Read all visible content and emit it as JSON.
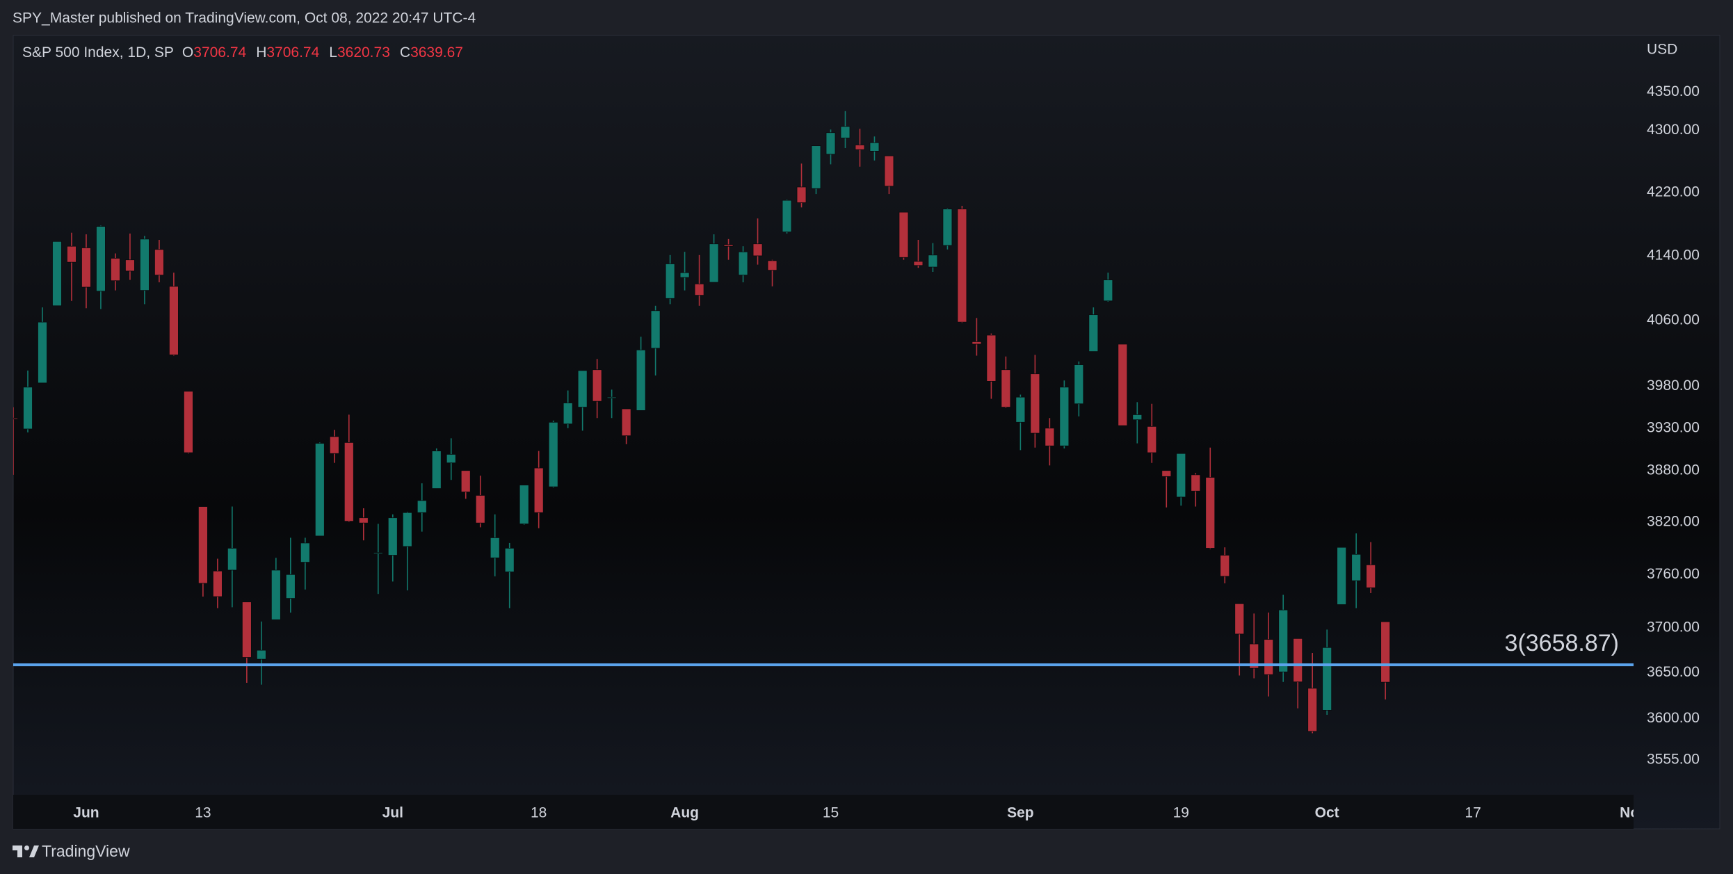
{
  "publisher_line": "SPY_Master published on TradingView.com, Oct 08, 2022 20:47 UTC-4",
  "brand": "TradingView",
  "chart_data": {
    "type": "candlestick",
    "symbol": "S&P 500 Index, 1D, SP",
    "legend_labels": [
      "O",
      "H",
      "L",
      "C"
    ],
    "currency": "USD",
    "x": [
      "2022-05-24",
      "2022-05-25",
      "2022-05-26",
      "2022-05-27",
      "2022-05-31",
      "2022-06-01",
      "2022-06-02",
      "2022-06-03",
      "2022-06-06",
      "2022-06-07",
      "2022-06-08",
      "2022-06-09",
      "2022-06-10",
      "2022-06-13",
      "2022-06-14",
      "2022-06-15",
      "2022-06-16",
      "2022-06-17",
      "2022-06-21",
      "2022-06-22",
      "2022-06-23",
      "2022-06-24",
      "2022-06-27",
      "2022-06-28",
      "2022-06-29",
      "2022-06-30",
      "2022-07-01",
      "2022-07-05",
      "2022-07-06",
      "2022-07-07",
      "2022-07-08",
      "2022-07-11",
      "2022-07-12",
      "2022-07-13",
      "2022-07-14",
      "2022-07-15",
      "2022-07-18",
      "2022-07-19",
      "2022-07-20",
      "2022-07-21",
      "2022-07-22",
      "2022-07-25",
      "2022-07-26",
      "2022-07-27",
      "2022-07-28",
      "2022-07-29",
      "2022-08-01",
      "2022-08-02",
      "2022-08-03",
      "2022-08-04",
      "2022-08-05",
      "2022-08-08",
      "2022-08-09",
      "2022-08-10",
      "2022-08-11",
      "2022-08-12",
      "2022-08-15",
      "2022-08-16",
      "2022-08-17",
      "2022-08-18",
      "2022-08-19",
      "2022-08-22",
      "2022-08-23",
      "2022-08-24",
      "2022-08-25",
      "2022-08-26",
      "2022-08-29",
      "2022-08-30",
      "2022-08-31",
      "2022-09-01",
      "2022-09-02",
      "2022-09-06",
      "2022-09-07",
      "2022-09-08",
      "2022-09-09",
      "2022-09-12",
      "2022-09-13",
      "2022-09-14",
      "2022-09-15",
      "2022-09-16",
      "2022-09-19",
      "2022-09-20",
      "2022-09-21",
      "2022-09-22",
      "2022-09-23",
      "2022-09-26",
      "2022-09-27",
      "2022-09-28",
      "2022-09-29",
      "2022-09-30",
      "2022-10-03",
      "2022-10-04",
      "2022-10-05",
      "2022-10-06",
      "2022-10-07"
    ],
    "open": [
      3942,
      3929,
      3984,
      4078,
      4152,
      4150,
      4096,
      4137,
      4135,
      4097,
      4148,
      4102,
      3974,
      3838,
      3764,
      3765,
      3729,
      3665,
      3709,
      3733,
      3774,
      3804,
      3920,
      3913,
      3825,
      3785,
      3782,
      3792,
      3831,
      3859,
      3889,
      3880,
      3851,
      3779,
      3763,
      3818,
      3883,
      3861,
      3935,
      3955,
      4000,
      3966,
      3953,
      3951,
      4026,
      4087,
      4113,
      4105,
      4107,
      4154,
      4116,
      4155,
      4134,
      4170,
      4227,
      4225,
      4269,
      4290,
      4281,
      4273,
      4267,
      4195,
      4133,
      4126,
      4153,
      4199,
      4034,
      4042,
      4000,
      3937,
      3995,
      3930,
      3909,
      3959,
      4022,
      4084,
      4031,
      3940,
      3932,
      3880,
      3849,
      3875,
      3872,
      3782,
      3727,
      3682,
      3687,
      3651,
      3688,
      3633,
      3609,
      3726,
      3753,
      3771,
      3706.74
    ],
    "high": [
      3955,
      3999,
      4076,
      4158,
      4169,
      4167,
      4178,
      4143,
      4168,
      4165,
      4160,
      4119,
      3974,
      3838,
      3778,
      3838,
      3729,
      3707,
      3779,
      3802,
      3802,
      3913,
      3928,
      3946,
      3836,
      3818,
      3829,
      3832,
      3865,
      3906,
      3918,
      3880,
      3874,
      3829,
      3796,
      3863,
      3903,
      3939,
      3975,
      3999,
      4013,
      3976,
      3953,
      4040,
      4078,
      4141,
      4145,
      4141,
      4167,
      4161,
      4152,
      4187,
      4135,
      4211,
      4257,
      4280,
      4301,
      4325,
      4302,
      4292,
      4267,
      4195,
      4160,
      4156,
      4200,
      4203,
      4063,
      4044,
      4016,
      3970,
      4018,
      3942,
      3987,
      4010,
      4076,
      4119,
      4031,
      3961,
      3959,
      3880,
      3900,
      3877,
      3907,
      3791,
      3727,
      3716,
      3717,
      3737,
      3688,
      3672,
      3698,
      3791,
      3807,
      3797,
      3706.74
    ],
    "low": [
      3875,
      3925,
      3984,
      4078,
      4084,
      4075,
      4074,
      4097,
      4110,
      4080,
      4107,
      4017,
      3900,
      3735,
      3722,
      3723,
      3639,
      3637,
      3709,
      3717,
      3743,
      3804,
      3889,
      3820,
      3799,
      3738,
      3752,
      3742,
      3809,
      3859,
      3869,
      3847,
      3814,
      3758,
      3722,
      3817,
      3813,
      3860,
      3930,
      3927,
      3942,
      3942,
      3911,
      3951,
      3993,
      4080,
      4097,
      4078,
      4107,
      4135,
      4107,
      4129,
      4102,
      4168,
      4201,
      4218,
      4256,
      4277,
      4253,
      4261,
      4218,
      4135,
      4125,
      4120,
      4148,
      4057,
      4017,
      3965,
      3954,
      3904,
      3907,
      3886,
      3906,
      3944,
      4022,
      4083,
      3933,
      3912,
      3889,
      3837,
      3839,
      3838,
      3789,
      3750,
      3647,
      3644,
      3624,
      3640,
      3611,
      3584,
      3604,
      3726,
      3722,
      3739,
      3620.73
    ],
    "close": [
      3941,
      3979,
      4058,
      4158,
      4132,
      4101,
      4177,
      4109,
      4121,
      4161,
      4116,
      4018,
      3901,
      3750,
      3735,
      3790,
      3667,
      3675,
      3765,
      3760,
      3796,
      3912,
      3900,
      3821,
      3819,
      3785,
      3825,
      3831,
      3845,
      3903,
      3899,
      3855,
      3819,
      3802,
      3790,
      3863,
      3831,
      3937,
      3960,
      3999,
      3962,
      3967,
      3921,
      4024,
      4072,
      4130,
      4119,
      4091,
      4155,
      4152,
      4145,
      4140,
      4122,
      4210,
      4207,
      4280,
      4297,
      4305,
      4275,
      4284,
      4228,
      4138,
      4128,
      4141,
      4199,
      4058,
      4031,
      3986,
      3955,
      3967,
      3924,
      3909,
      3979,
      4006,
      4067,
      4110,
      3933,
      3946,
      3901,
      3873,
      3900,
      3856,
      3790,
      3758,
      3693,
      3655,
      3648,
      3720,
      3640,
      3586,
      3678,
      3791,
      3783,
      3745,
      3639.67
    ],
    "up_color": "#127a6d",
    "down_color": "#b3303b",
    "xlim": [
      "2022-05-24",
      "2022-11-01"
    ],
    "xticks": [
      {
        "value": "2022-06-01",
        "label": "Jun"
      },
      {
        "value": "2022-06-13",
        "label": "13"
      },
      {
        "value": "2022-07-01",
        "label": "Jul"
      },
      {
        "value": "2022-07-18",
        "label": "18"
      },
      {
        "value": "2022-08-01",
        "label": "Aug"
      },
      {
        "value": "2022-08-15",
        "label": "15"
      },
      {
        "value": "2022-09-01",
        "label": "Sep"
      },
      {
        "value": "2022-09-19",
        "label": "19"
      },
      {
        "value": "2022-10-03",
        "label": "Oct"
      },
      {
        "value": "2022-10-17",
        "label": "17"
      },
      {
        "value": "2022-11-01",
        "label": "Nov"
      }
    ],
    "ylim": [
      3518,
      4425
    ],
    "yticks": [
      {
        "value": 4350,
        "label": "4350.00"
      },
      {
        "value": 4300,
        "label": "4300.00"
      },
      {
        "value": 4220,
        "label": "4220.00"
      },
      {
        "value": 4140,
        "label": "4140.00"
      },
      {
        "value": 4060,
        "label": "4060.00"
      },
      {
        "value": 3980,
        "label": "3980.00"
      },
      {
        "value": 3930,
        "label": "3930.00"
      },
      {
        "value": 3880,
        "label": "3880.00"
      },
      {
        "value": 3820,
        "label": "3820.00"
      },
      {
        "value": 3760,
        "label": "3760.00"
      },
      {
        "value": 3700,
        "label": "3700.00"
      },
      {
        "value": 3650,
        "label": "3650.00"
      },
      {
        "value": 3600,
        "label": "3600.00"
      },
      {
        "value": 3555,
        "label": "3555.00"
      }
    ],
    "log_scale": true,
    "grid": false,
    "level": {
      "value": 3658.87,
      "label": "3(3658.87)",
      "color": "#5ba3ec"
    }
  }
}
